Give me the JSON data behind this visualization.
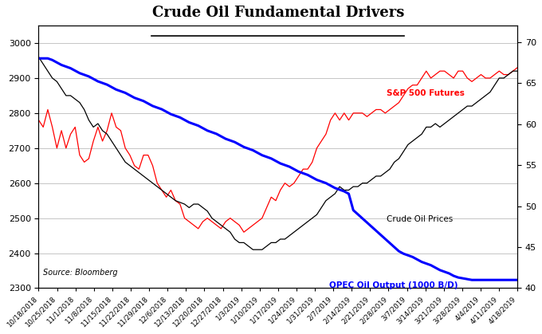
{
  "title": "Crude Oil Fundamental Drivers",
  "source": "Source: Bloomberg",
  "background_color": "#ffffff",
  "left_ylim": [
    2300,
    3050
  ],
  "right_ylim": [
    40,
    72
  ],
  "left_yticks": [
    2300,
    2400,
    2500,
    2600,
    2700,
    2800,
    2900,
    3000
  ],
  "right_yticks": [
    40,
    45,
    50,
    55,
    60,
    65,
    70
  ],
  "sp500_label": "S&P 500 Futures",
  "crude_label": "Crude Oil Prices",
  "opec_label": "OPEC Oil Output (1000 B/D)",
  "sp500_color": "#ff0000",
  "crude_color": "#000000",
  "opec_color": "#0000ff",
  "sp500_data": [
    2780,
    2760,
    2810,
    2760,
    2700,
    2750,
    2700,
    2740,
    2760,
    2680,
    2660,
    2670,
    2720,
    2760,
    2720,
    2750,
    2800,
    2760,
    2750,
    2700,
    2680,
    2650,
    2640,
    2680,
    2680,
    2650,
    2600,
    2580,
    2560,
    2580,
    2550,
    2540,
    2500,
    2490,
    2480,
    2470,
    2490,
    2500,
    2490,
    2480,
    2470,
    2490,
    2500,
    2490,
    2480,
    2460,
    2470,
    2480,
    2490,
    2500,
    2530,
    2560,
    2550,
    2580,
    2600,
    2590,
    2600,
    2620,
    2640,
    2640,
    2660,
    2700,
    2720,
    2740,
    2780,
    2800,
    2780,
    2800,
    2780,
    2800,
    2800,
    2800,
    2790,
    2800,
    2810,
    2810,
    2800,
    2810,
    2820,
    2830,
    2850,
    2870,
    2880,
    2880,
    2900,
    2920,
    2900,
    2910,
    2920,
    2920,
    2910,
    2900,
    2920,
    2920,
    2900,
    2890,
    2900,
    2910,
    2900,
    2900,
    2910,
    2920,
    2910,
    2910,
    2920,
    2930
  ],
  "crude_data": [
    2960,
    2940,
    2920,
    2900,
    2890,
    2870,
    2850,
    2850,
    2840,
    2830,
    2810,
    2780,
    2760,
    2770,
    2750,
    2740,
    2720,
    2700,
    2680,
    2660,
    2650,
    2640,
    2630,
    2620,
    2610,
    2600,
    2590,
    2580,
    2570,
    2560,
    2550,
    2545,
    2540,
    2530,
    2540,
    2540,
    2530,
    2520,
    2500,
    2490,
    2480,
    2470,
    2460,
    2440,
    2430,
    2430,
    2420,
    2410,
    2410,
    2410,
    2420,
    2430,
    2430,
    2440,
    2440,
    2450,
    2460,
    2470,
    2480,
    2490,
    2500,
    2510,
    2530,
    2550,
    2560,
    2570,
    2590,
    2580,
    2580,
    2590,
    2590,
    2600,
    2600,
    2610,
    2620,
    2620,
    2630,
    2640,
    2660,
    2670,
    2690,
    2710,
    2720,
    2730,
    2740,
    2760,
    2760,
    2770,
    2760,
    2770,
    2780,
    2790,
    2800,
    2810,
    2820,
    2820,
    2830,
    2840,
    2850,
    2860,
    2880,
    2900,
    2900,
    2910,
    2920,
    2920
  ],
  "opec_data": [
    68.0,
    68.0,
    68.0,
    67.8,
    67.5,
    67.2,
    67.0,
    66.8,
    66.5,
    66.2,
    66.0,
    65.8,
    65.5,
    65.2,
    65.0,
    64.8,
    64.5,
    64.2,
    64.0,
    63.8,
    63.5,
    63.2,
    63.0,
    62.8,
    62.5,
    62.2,
    62.0,
    61.8,
    61.5,
    61.2,
    61.0,
    60.8,
    60.5,
    60.2,
    60.0,
    59.8,
    59.5,
    59.2,
    59.0,
    58.8,
    58.5,
    58.2,
    58.0,
    57.8,
    57.5,
    57.2,
    57.0,
    56.8,
    56.5,
    56.2,
    56.0,
    55.8,
    55.5,
    55.2,
    55.0,
    54.8,
    54.5,
    54.2,
    54.0,
    53.8,
    53.5,
    53.2,
    53.0,
    52.8,
    52.5,
    52.2,
    52.0,
    51.8,
    51.5,
    49.5,
    49.0,
    48.5,
    48.0,
    47.5,
    47.0,
    46.5,
    46.0,
    45.5,
    45.0,
    44.5,
    44.2,
    44.0,
    43.8,
    43.5,
    43.2,
    43.0,
    42.8,
    42.5,
    42.2,
    42.0,
    41.8,
    41.5,
    41.3,
    41.2,
    41.1,
    41.0,
    41.0,
    41.0,
    41.0,
    41.0,
    41.0,
    41.0,
    41.0,
    41.0,
    41.0,
    41.0
  ],
  "xtick_labels": [
    "10/18/2018",
    "10/25/2018",
    "11/1/2018",
    "11/8/2018",
    "11/15/2018",
    "11/22/2018",
    "11/29/2018",
    "12/6/2018",
    "12/13/2018",
    "12/20/2018",
    "12/27/2018",
    "1/3/2019",
    "1/10/2019",
    "1/17/2019",
    "1/24/2019",
    "1/31/2019",
    "2/7/2019",
    "2/14/2019",
    "2/21/2019",
    "2/28/2019",
    "3/7/2019",
    "3/14/2019",
    "3/21/2019",
    "3/28/2019",
    "4/4/2019",
    "4/11/2019",
    "4/18/2019"
  ]
}
